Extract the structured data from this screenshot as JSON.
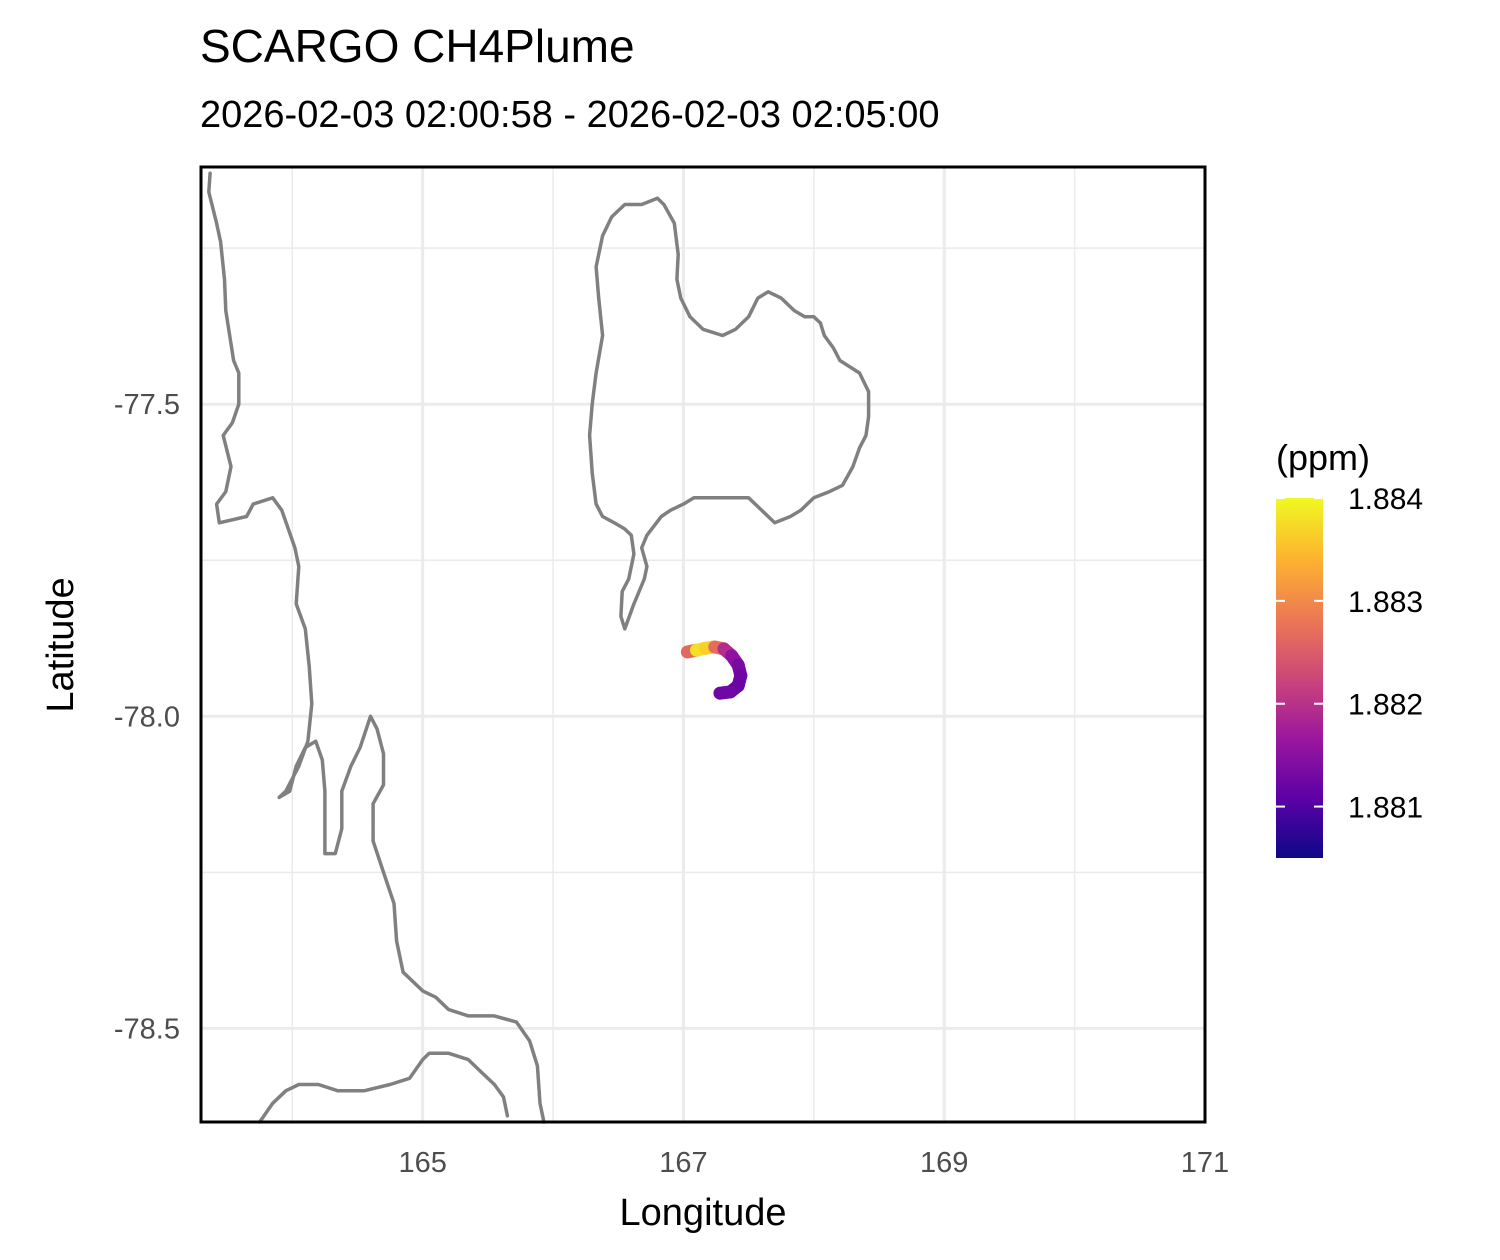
{
  "header": {
    "title": "SCARGO CH4Plume",
    "subtitle": "2026-02-03 02:00:58 - 2026-02-03 02:05:00"
  },
  "chart_data": {
    "type": "map",
    "xlabel": "Longitude",
    "ylabel": "Latitude",
    "xlim": [
      163.3,
      171.0
    ],
    "ylim": [
      -78.65,
      -77.12
    ],
    "x_ticks": [
      165,
      167,
      169,
      171
    ],
    "x_tick_labels": [
      "165",
      "167",
      "169",
      "171"
    ],
    "y_ticks": [
      -77.5,
      -78.0,
      -78.5
    ],
    "y_tick_labels": [
      "-77.5",
      "-78.0",
      "-78.5"
    ],
    "x_minor_gridlines": [
      164,
      166,
      168,
      170
    ],
    "y_minor_gridlines": [
      -77.25,
      -77.75,
      -78.25
    ],
    "grid": true,
    "colors": {
      "coastline": "#808080",
      "grid": "#ebebeb",
      "panel_border": "#000000"
    },
    "legend": {
      "title": "(ppm)",
      "placement": "right",
      "colormap": "plasma",
      "range": [
        1.8805,
        1.884
      ],
      "ticks": [
        1.884,
        1.883,
        1.882,
        1.881
      ],
      "tick_labels": [
        "1.884",
        "1.883",
        "1.882",
        "1.881"
      ],
      "stops": [
        "#0d0887",
        "#5c01a6",
        "#9c179e",
        "#cc4778",
        "#ed7953",
        "#fdb42f",
        "#f0f921"
      ]
    },
    "plume_track": [
      {
        "lon": 167.03,
        "lat": -77.897,
        "value": 1.8818
      },
      {
        "lon": 167.1,
        "lat": -77.894,
        "value": 1.8835
      },
      {
        "lon": 167.17,
        "lat": -77.891,
        "value": 1.8841
      },
      {
        "lon": 167.24,
        "lat": -77.889,
        "value": 1.8832
      },
      {
        "lon": 167.31,
        "lat": -77.892,
        "value": 1.8822
      },
      {
        "lon": 167.37,
        "lat": -77.903,
        "value": 1.8817
      },
      {
        "lon": 167.42,
        "lat": -77.918,
        "value": 1.8814
      },
      {
        "lon": 167.44,
        "lat": -77.935,
        "value": 1.8813
      },
      {
        "lon": 167.42,
        "lat": -77.951,
        "value": 1.8812
      },
      {
        "lon": 167.36,
        "lat": -77.961,
        "value": 1.8812
      },
      {
        "lon": 167.28,
        "lat": -77.963,
        "value": 1.8813
      }
    ],
    "coastlines": [
      [
        [
          163.37,
          -77.13
        ],
        [
          163.36,
          -77.16
        ],
        [
          163.42,
          -77.21
        ],
        [
          163.45,
          -77.24
        ],
        [
          163.48,
          -77.3
        ],
        [
          163.49,
          -77.35
        ],
        [
          163.52,
          -77.39
        ],
        [
          163.55,
          -77.43
        ],
        [
          163.59,
          -77.45
        ],
        [
          163.59,
          -77.5
        ],
        [
          163.54,
          -77.53
        ],
        [
          163.47,
          -77.55
        ],
        [
          163.53,
          -77.6
        ],
        [
          163.49,
          -77.64
        ],
        [
          163.42,
          -77.66
        ],
        [
          163.44,
          -77.69
        ],
        [
          163.65,
          -77.68
        ],
        [
          163.7,
          -77.66
        ],
        [
          163.85,
          -77.65
        ],
        [
          163.92,
          -77.67
        ],
        [
          164.02,
          -77.73
        ],
        [
          164.05,
          -77.76
        ],
        [
          164.03,
          -77.82
        ],
        [
          164.1,
          -77.86
        ],
        [
          164.13,
          -77.92
        ],
        [
          164.15,
          -77.98
        ],
        [
          164.12,
          -78.04
        ],
        [
          164.05,
          -78.08
        ],
        [
          163.95,
          -78.12
        ],
        [
          163.9,
          -78.13
        ],
        [
          163.98,
          -78.12
        ],
        [
          164.03,
          -78.08
        ],
        [
          164.1,
          -78.05
        ],
        [
          164.18,
          -78.04
        ],
        [
          164.23,
          -78.07
        ],
        [
          164.25,
          -78.12
        ],
        [
          164.25,
          -78.22
        ],
        [
          164.33,
          -78.22
        ],
        [
          164.38,
          -78.18
        ],
        [
          164.38,
          -78.12
        ],
        [
          164.45,
          -78.08
        ],
        [
          164.52,
          -78.05
        ],
        [
          164.6,
          -78.0
        ],
        [
          164.65,
          -78.02
        ],
        [
          164.7,
          -78.06
        ],
        [
          164.7,
          -78.11
        ],
        [
          164.62,
          -78.14
        ],
        [
          164.62,
          -78.2
        ],
        [
          164.7,
          -78.25
        ],
        [
          164.78,
          -78.3
        ],
        [
          164.8,
          -78.36
        ],
        [
          164.85,
          -78.41
        ],
        [
          165.0,
          -78.44
        ],
        [
          165.1,
          -78.45
        ],
        [
          165.2,
          -78.47
        ],
        [
          165.35,
          -78.48
        ],
        [
          165.55,
          -78.48
        ],
        [
          165.72,
          -78.49
        ],
        [
          165.82,
          -78.52
        ],
        [
          165.88,
          -78.56
        ],
        [
          165.9,
          -78.62
        ],
        [
          165.93,
          -78.65
        ]
      ],
      [
        [
          163.75,
          -78.65
        ],
        [
          163.85,
          -78.62
        ],
        [
          163.95,
          -78.6
        ],
        [
          164.05,
          -78.59
        ],
        [
          164.2,
          -78.59
        ],
        [
          164.35,
          -78.6
        ],
        [
          164.55,
          -78.6
        ],
        [
          164.75,
          -78.59
        ],
        [
          164.9,
          -78.58
        ],
        [
          165.0,
          -78.55
        ],
        [
          165.05,
          -78.54
        ],
        [
          165.2,
          -78.54
        ],
        [
          165.35,
          -78.55
        ],
        [
          165.45,
          -78.57
        ],
        [
          165.55,
          -78.59
        ],
        [
          165.62,
          -78.61
        ],
        [
          165.65,
          -78.64
        ]
      ],
      [
        [
          166.68,
          -77.18
        ],
        [
          166.8,
          -77.17
        ],
        [
          166.85,
          -77.18
        ],
        [
          166.93,
          -77.21
        ],
        [
          166.96,
          -77.26
        ],
        [
          166.95,
          -77.3
        ],
        [
          166.98,
          -77.33
        ],
        [
          167.05,
          -77.36
        ],
        [
          167.15,
          -77.38
        ],
        [
          167.3,
          -77.39
        ],
        [
          167.4,
          -77.38
        ],
        [
          167.5,
          -77.36
        ],
        [
          167.57,
          -77.33
        ],
        [
          167.65,
          -77.32
        ],
        [
          167.75,
          -77.33
        ],
        [
          167.85,
          -77.35
        ],
        [
          167.93,
          -77.36
        ],
        [
          168.0,
          -77.36
        ],
        [
          168.05,
          -77.37
        ],
        [
          168.08,
          -77.39
        ],
        [
          168.15,
          -77.41
        ],
        [
          168.2,
          -77.43
        ],
        [
          168.35,
          -77.45
        ],
        [
          168.42,
          -77.48
        ],
        [
          168.42,
          -77.52
        ],
        [
          168.4,
          -77.55
        ],
        [
          168.35,
          -77.57
        ],
        [
          168.3,
          -77.6
        ],
        [
          168.22,
          -77.63
        ],
        [
          168.12,
          -77.64
        ],
        [
          168.0,
          -77.65
        ],
        [
          167.9,
          -77.67
        ],
        [
          167.82,
          -77.68
        ],
        [
          167.7,
          -77.69
        ],
        [
          167.6,
          -77.67
        ],
        [
          167.5,
          -77.65
        ],
        [
          167.35,
          -77.65
        ],
        [
          167.2,
          -77.65
        ],
        [
          167.08,
          -77.65
        ],
        [
          167.0,
          -77.66
        ],
        [
          166.9,
          -77.67
        ],
        [
          166.83,
          -77.68
        ],
        [
          166.72,
          -77.71
        ],
        [
          166.68,
          -77.73
        ],
        [
          166.72,
          -77.76
        ],
        [
          166.7,
          -77.78
        ],
        [
          166.62,
          -77.82
        ],
        [
          166.55,
          -77.86
        ],
        [
          166.52,
          -77.84
        ],
        [
          166.53,
          -77.8
        ],
        [
          166.58,
          -77.78
        ],
        [
          166.62,
          -77.74
        ],
        [
          166.6,
          -77.71
        ],
        [
          166.55,
          -77.7
        ],
        [
          166.47,
          -77.69
        ],
        [
          166.38,
          -77.68
        ],
        [
          166.33,
          -77.66
        ],
        [
          166.3,
          -77.61
        ],
        [
          166.28,
          -77.55
        ],
        [
          166.3,
          -77.5
        ],
        [
          166.33,
          -77.45
        ],
        [
          166.38,
          -77.39
        ],
        [
          166.35,
          -77.33
        ],
        [
          166.33,
          -77.28
        ],
        [
          166.38,
          -77.23
        ],
        [
          166.45,
          -77.2
        ],
        [
          166.55,
          -77.18
        ],
        [
          166.68,
          -77.18
        ]
      ]
    ]
  }
}
